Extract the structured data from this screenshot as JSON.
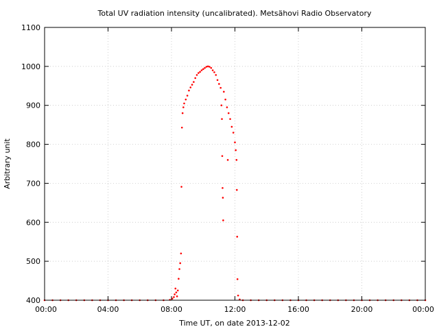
{
  "chart_data": {
    "type": "scatter",
    "title": "Total UV radiation intensity (uncalibrated). Metsähovi Radio Observatory",
    "xlabel": "Time UT, on date 2013-12-02",
    "ylabel": "Arbitrary unit",
    "x_unit": "hours UT",
    "xlim": [
      0,
      24
    ],
    "ylim": [
      400,
      1100
    ],
    "x_ticks": [
      {
        "value": 0,
        "label": "00:00"
      },
      {
        "value": 4,
        "label": "04:00"
      },
      {
        "value": 8,
        "label": "08:00"
      },
      {
        "value": 12,
        "label": "12:00"
      },
      {
        "value": 16,
        "label": "16:00"
      },
      {
        "value": 20,
        "label": "20:00"
      },
      {
        "value": 24,
        "label": "00:00"
      }
    ],
    "y_ticks": [
      {
        "value": 400,
        "label": "400"
      },
      {
        "value": 500,
        "label": "500"
      },
      {
        "value": 600,
        "label": "600"
      },
      {
        "value": 700,
        "label": "700"
      },
      {
        "value": 800,
        "label": "800"
      },
      {
        "value": 900,
        "label": "900"
      },
      {
        "value": 1000,
        "label": "1000"
      },
      {
        "value": 1100,
        "label": "1100"
      }
    ],
    "grid": true,
    "marker_color": "#ff0000",
    "series": [
      {
        "name": "",
        "points": [
          [
            0.0,
            400
          ],
          [
            0.5,
            400
          ],
          [
            1.0,
            400
          ],
          [
            1.5,
            400
          ],
          [
            2.0,
            400
          ],
          [
            2.5,
            400
          ],
          [
            3.0,
            400
          ],
          [
            3.5,
            400
          ],
          [
            4.0,
            400
          ],
          [
            4.5,
            400
          ],
          [
            5.0,
            400
          ],
          [
            5.5,
            400
          ],
          [
            6.0,
            400
          ],
          [
            6.5,
            400
          ],
          [
            7.0,
            400
          ],
          [
            7.5,
            400
          ],
          [
            7.9,
            401
          ],
          [
            8.05,
            404
          ],
          [
            8.15,
            408
          ],
          [
            8.2,
            415
          ],
          [
            8.25,
            430
          ],
          [
            8.3,
            420
          ],
          [
            8.35,
            410
          ],
          [
            8.4,
            425
          ],
          [
            8.45,
            455
          ],
          [
            8.5,
            480
          ],
          [
            8.55,
            495
          ],
          [
            8.6,
            520
          ],
          [
            8.63,
            691
          ],
          [
            8.66,
            843
          ],
          [
            8.7,
            880
          ],
          [
            8.75,
            895
          ],
          [
            8.8,
            905
          ],
          [
            8.9,
            915
          ],
          [
            9.0,
            925
          ],
          [
            9.1,
            938
          ],
          [
            9.2,
            946
          ],
          [
            9.3,
            953
          ],
          [
            9.4,
            960
          ],
          [
            9.5,
            970
          ],
          [
            9.6,
            978
          ],
          [
            9.7,
            983
          ],
          [
            9.8,
            986
          ],
          [
            9.9,
            990
          ],
          [
            10.0,
            993
          ],
          [
            10.1,
            996
          ],
          [
            10.2,
            999
          ],
          [
            10.3,
            1000
          ],
          [
            10.4,
            999
          ],
          [
            10.5,
            996
          ],
          [
            10.6,
            990
          ],
          [
            10.7,
            985
          ],
          [
            10.8,
            978
          ],
          [
            10.9,
            965
          ],
          [
            11.0,
            955
          ],
          [
            11.1,
            945
          ],
          [
            11.15,
            900
          ],
          [
            11.18,
            865
          ],
          [
            11.2,
            770
          ],
          [
            11.22,
            688
          ],
          [
            11.24,
            663
          ],
          [
            11.26,
            605
          ],
          [
            11.3,
            935
          ],
          [
            11.4,
            915
          ],
          [
            11.5,
            895
          ],
          [
            11.55,
            760
          ],
          [
            11.6,
            880
          ],
          [
            11.7,
            865
          ],
          [
            11.8,
            845
          ],
          [
            11.9,
            830
          ],
          [
            12.0,
            805
          ],
          [
            12.05,
            785
          ],
          [
            12.1,
            760
          ],
          [
            12.12,
            683
          ],
          [
            12.14,
            563
          ],
          [
            12.16,
            454
          ],
          [
            12.2,
            412
          ],
          [
            12.3,
            402
          ],
          [
            12.5,
            400
          ],
          [
            13.0,
            400
          ],
          [
            13.5,
            400
          ],
          [
            14.0,
            400
          ],
          [
            14.5,
            400
          ],
          [
            15.0,
            400
          ],
          [
            15.5,
            400
          ],
          [
            16.0,
            400
          ],
          [
            16.5,
            400
          ],
          [
            17.0,
            400
          ],
          [
            17.5,
            400
          ],
          [
            18.0,
            400
          ],
          [
            18.5,
            400
          ],
          [
            19.0,
            400
          ],
          [
            19.5,
            400
          ],
          [
            20.0,
            400
          ],
          [
            20.5,
            400
          ],
          [
            21.0,
            400
          ],
          [
            21.5,
            400
          ],
          [
            22.0,
            400
          ],
          [
            22.5,
            400
          ],
          [
            23.0,
            400
          ],
          [
            23.5,
            400
          ],
          [
            24.0,
            400
          ]
        ]
      }
    ]
  }
}
